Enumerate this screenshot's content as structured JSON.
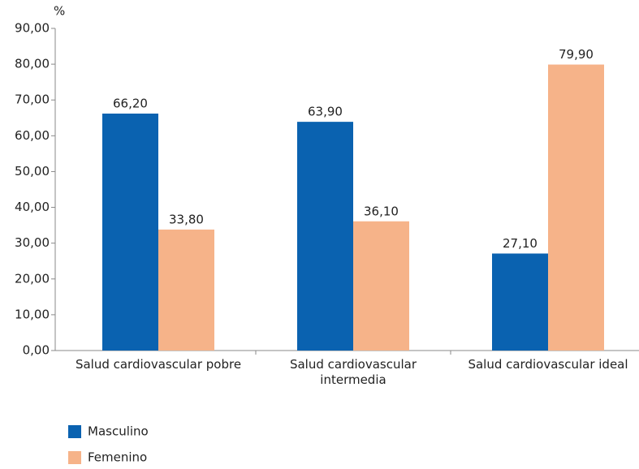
{
  "chart_data": {
    "type": "bar",
    "y_label": "%",
    "categories": [
      "Salud cardiovascular pobre",
      "Salud cardiovascular intermedia",
      "Salud cardiovascular ideal"
    ],
    "series": [
      {
        "name": "Masculino",
        "color": "#0a62b0",
        "values": [
          66.2,
          63.9,
          27.1
        ],
        "value_labels": [
          "66,20",
          "63,90",
          "27,10"
        ]
      },
      {
        "name": "Femenino",
        "color": "#f6b389",
        "values": [
          33.8,
          36.1,
          79.9
        ],
        "value_labels": [
          "33,80",
          "36,10",
          "79,90"
        ]
      }
    ],
    "ylim": [
      0,
      90
    ],
    "yticks": [
      {
        "value": 0,
        "label": "0,00"
      },
      {
        "value": 10,
        "label": "10,00"
      },
      {
        "value": 20,
        "label": "20,00"
      },
      {
        "value": 30,
        "label": "30,00"
      },
      {
        "value": 40,
        "label": "40,00"
      },
      {
        "value": 50,
        "label": "50,00"
      },
      {
        "value": 60,
        "label": "60,00"
      },
      {
        "value": 70,
        "label": "70,00"
      },
      {
        "value": 80,
        "label": "80,00"
      },
      {
        "value": 90,
        "label": "90,00"
      }
    ],
    "grid": false,
    "legend": "bottom-left"
  }
}
